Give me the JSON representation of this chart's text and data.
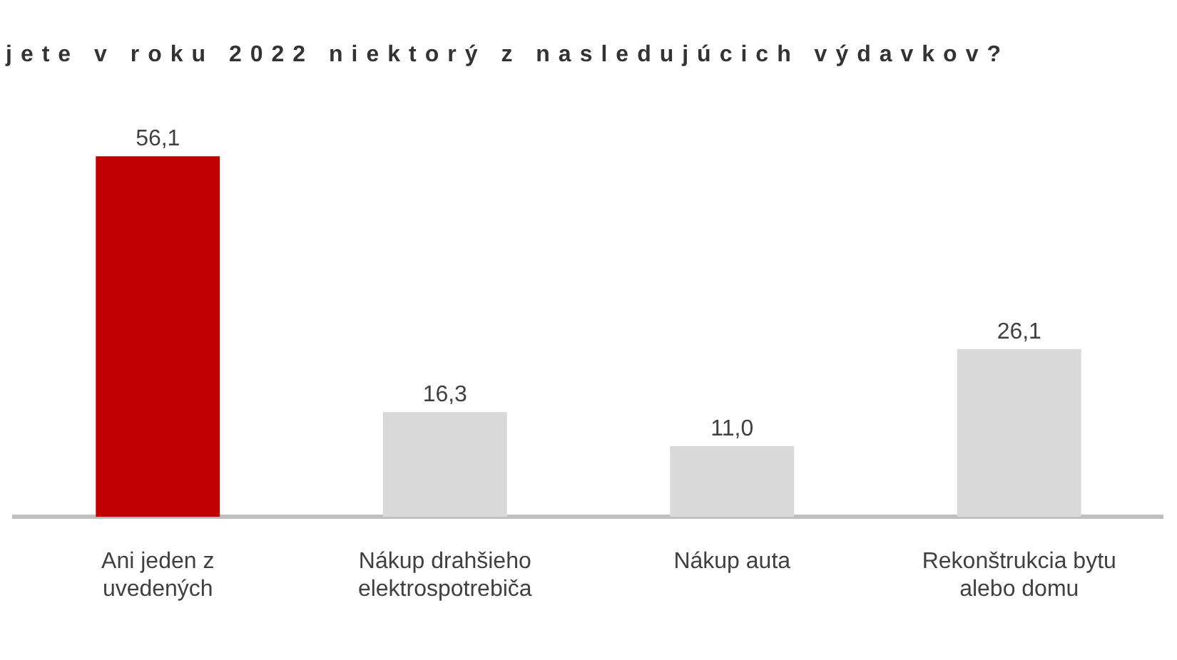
{
  "chart_data": {
    "type": "bar",
    "title": "jete v roku 2022 niektorý z nasledujúcich výdavkov?",
    "categories": [
      "Ani jeden z uvedených",
      "Nákup drahšieho elektrospotrebiča",
      "Nákup auta",
      "Rekonštrukcia bytu alebo domu"
    ],
    "values": [
      56.1,
      16.3,
      11.0,
      26.1
    ],
    "colors": [
      "#c00000",
      "#d9d9d9",
      "#d9d9d9",
      "#d9d9d9"
    ],
    "value_labels": [
      "56,1",
      "16,3",
      "11,0",
      "26,1"
    ]
  }
}
